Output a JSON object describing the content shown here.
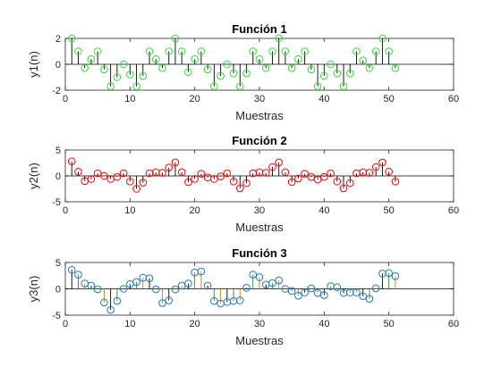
{
  "chart_data": [
    {
      "type": "stem",
      "title": "Función 1",
      "xlabel": "Muestras",
      "ylabel": "y1(n)",
      "xlim": [
        0,
        60
      ],
      "ylim": [
        -2,
        2
      ],
      "xticks": [
        0,
        10,
        20,
        30,
        40,
        50,
        60
      ],
      "yticks": [
        -2,
        0,
        2
      ],
      "marker_color": "#32dc32",
      "stem_color": "#000000",
      "x": [
        1,
        2,
        3,
        4,
        5,
        6,
        7,
        8,
        9,
        10,
        11,
        12,
        13,
        14,
        15,
        16,
        17,
        18,
        19,
        20,
        21,
        22,
        23,
        24,
        25,
        26,
        27,
        28,
        29,
        30,
        31,
        32,
        33,
        34,
        35,
        36,
        37,
        38,
        39,
        40,
        41,
        42,
        43,
        44,
        45,
        46,
        47,
        48,
        49,
        50,
        51
      ],
      "values": [
        2.0,
        1.0,
        -0.3,
        0.4,
        1.0,
        -0.4,
        -1.7,
        -1.0,
        0.0,
        -0.8,
        -1.7,
        -0.9,
        1.0,
        0.4,
        -0.3,
        1.0,
        2.0,
        1.0,
        -0.6,
        0.4,
        1.0,
        -0.4,
        -1.7,
        -0.9,
        0.0,
        -0.7,
        -1.7,
        -0.7,
        1.0,
        0.4,
        -0.3,
        1.0,
        2.0,
        1.0,
        -0.3,
        0.4,
        1.0,
        -0.4,
        -1.7,
        -0.9,
        0.0,
        -0.7,
        -1.7,
        -0.7,
        1.0,
        0.3,
        -0.3,
        1.0,
        2.0,
        1.0,
        -0.3
      ]
    },
    {
      "type": "stem",
      "title": "Función 2",
      "xlabel": "Muestras",
      "ylabel": "y2(n)",
      "xlim": [
        0,
        60
      ],
      "ylim": [
        -5,
        5
      ],
      "xticks": [
        0,
        10,
        20,
        30,
        40,
        50,
        60
      ],
      "yticks": [
        -5,
        0,
        5
      ],
      "marker_color": "#ff0000",
      "stem_color": "#000000",
      "x": [
        1,
        2,
        3,
        4,
        5,
        6,
        7,
        8,
        9,
        10,
        11,
        12,
        13,
        14,
        15,
        16,
        17,
        18,
        19,
        20,
        21,
        22,
        23,
        24,
        25,
        26,
        27,
        28,
        29,
        30,
        31,
        32,
        33,
        34,
        35,
        36,
        37,
        38,
        39,
        40,
        41,
        42,
        43,
        44,
        45,
        46,
        47,
        48,
        49,
        50,
        51
      ],
      "values": [
        2.8,
        0.8,
        -1.0,
        -0.6,
        0.5,
        0.0,
        -0.6,
        -0.2,
        0.5,
        -1.1,
        -2.5,
        -1.3,
        0.5,
        0.7,
        0.6,
        1.6,
        2.6,
        0.7,
        -1.2,
        -0.6,
        0.4,
        -0.3,
        -0.6,
        -0.1,
        0.5,
        -1.1,
        -2.4,
        -1.4,
        0.5,
        0.7,
        0.6,
        1.7,
        2.6,
        0.7,
        -1.2,
        -0.5,
        0.4,
        -0.2,
        -0.7,
        -0.2,
        0.5,
        -1.1,
        -2.4,
        -1.4,
        0.5,
        0.7,
        0.6,
        1.7,
        2.6,
        0.8,
        -1.1
      ]
    },
    {
      "type": "stem",
      "title": "Función 3",
      "xlabel": "Muestras",
      "ylabel": "y3(n)",
      "xlim": [
        0,
        60
      ],
      "ylim": [
        -5,
        5
      ],
      "xticks": [
        0,
        10,
        20,
        30,
        40,
        50,
        60
      ],
      "yticks": [
        -5,
        0,
        5
      ],
      "marker_color": "#1f78b4",
      "stem_colors": [
        "#000000",
        "#2e8b2e",
        "#b8860b"
      ],
      "x": [
        1,
        2,
        3,
        4,
        5,
        6,
        7,
        8,
        9,
        10,
        11,
        12,
        13,
        14,
        15,
        16,
        17,
        18,
        19,
        20,
        21,
        22,
        23,
        24,
        25,
        26,
        27,
        28,
        29,
        30,
        31,
        32,
        33,
        34,
        35,
        36,
        37,
        38,
        39,
        40,
        41,
        42,
        43,
        44,
        45,
        46,
        47,
        48,
        49,
        50,
        51
      ],
      "values": [
        3.6,
        2.7,
        1.0,
        0.6,
        -0.1,
        -2.6,
        -4.0,
        -2.3,
        0.0,
        0.9,
        1.3,
        2.1,
        2.0,
        -0.1,
        -2.7,
        -2.2,
        -0.1,
        0.6,
        1.0,
        3.1,
        3.3,
        0.6,
        -2.3,
        -2.8,
        -2.5,
        -2.3,
        -2.2,
        0.2,
        2.7,
        2.2,
        0.8,
        1.1,
        1.6,
        0.0,
        -0.4,
        -1.3,
        -0.7,
        0.1,
        -0.8,
        -1.2,
        0.5,
        0.3,
        -0.8,
        -0.7,
        -0.7,
        -1.4,
        -1.9,
        0.1,
        2.9,
        3.0,
        2.4
      ]
    }
  ]
}
